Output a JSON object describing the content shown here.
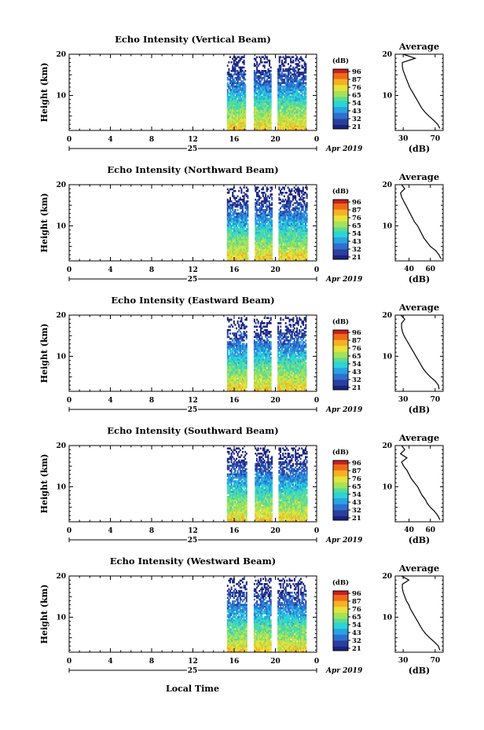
{
  "figure": {
    "xlabel": "Local Time",
    "day_label": "25",
    "date_label": "Apr 2019"
  },
  "colorbar": {
    "unit": "(dB)",
    "ticks": [
      "96",
      "87",
      "76",
      "65",
      "54",
      "43",
      "32",
      "21"
    ],
    "colors": [
      "#1a237e",
      "#2a3f9e",
      "#2f6fd0",
      "#29a3e3",
      "#2cd4d4",
      "#5bdc93",
      "#a3e25a",
      "#e6e23a",
      "#f7b023",
      "#f06a1a",
      "#c62020"
    ]
  },
  "chart_data": [
    {
      "type": "heatmap",
      "title": "Echo Intensity (Vertical Beam)",
      "ylabel": "Height (km)",
      "x_ticks": [
        "0",
        "4",
        "8",
        "12",
        "16",
        "20",
        "0"
      ],
      "xlim": [
        0,
        24
      ],
      "ylim": [
        1.5,
        20
      ],
      "y_ticks": [
        "20",
        "10"
      ],
      "data_segments_hours": [
        [
          15.3,
          17.1
        ],
        [
          17.9,
          19.5
        ],
        [
          20.2,
          23.0
        ]
      ],
      "value_range_db": [
        21,
        96
      ],
      "profile": {
        "title": "Average",
        "xlabel": "(dB)",
        "x_ticks": [
          "30",
          "70"
        ],
        "x_tick_values": [
          30,
          70
        ],
        "xlim": [
          20,
          80
        ],
        "heights": [
          2,
          3,
          4,
          5,
          6,
          7,
          8,
          9,
          10,
          11,
          12,
          13,
          14,
          15,
          16,
          17,
          18,
          19,
          20
        ],
        "values": [
          76,
          73,
          68,
          62,
          57,
          53,
          50,
          47,
          44,
          41,
          38,
          36,
          34,
          32,
          30,
          29,
          29,
          45,
          30
        ]
      }
    },
    {
      "type": "heatmap",
      "title": "Echo Intensity (Northward Beam)",
      "ylabel": "Height (km)",
      "x_ticks": [
        "0",
        "4",
        "8",
        "12",
        "16",
        "20",
        "0"
      ],
      "xlim": [
        0,
        24
      ],
      "ylim": [
        1.5,
        20
      ],
      "y_ticks": [
        "20",
        "10"
      ],
      "data_segments_hours": [
        [
          15.3,
          17.3
        ],
        [
          18.0,
          19.6
        ],
        [
          20.3,
          23.0
        ]
      ],
      "value_range_db": [
        21,
        96
      ],
      "profile": {
        "title": "Average",
        "xlabel": "(dB)",
        "x_ticks": [
          "40",
          "60"
        ],
        "x_tick_values": [
          40,
          60
        ],
        "xlim": [
          27,
          72
        ],
        "heights": [
          2,
          3,
          4,
          5,
          6,
          7,
          8,
          9,
          10,
          11,
          12,
          13,
          14,
          15,
          16,
          17,
          18,
          19,
          20
        ],
        "values": [
          70,
          68,
          65,
          60,
          57,
          54,
          52,
          50,
          48,
          45,
          43,
          41,
          39,
          37,
          35,
          33,
          32,
          36,
          33
        ]
      }
    },
    {
      "type": "heatmap",
      "title": "Echo Intensity (Eastward Beam)",
      "ylabel": "Height (km)",
      "x_ticks": [
        "0",
        "4",
        "8",
        "12",
        "16",
        "20",
        "0"
      ],
      "xlim": [
        0,
        24
      ],
      "ylim": [
        1.5,
        20
      ],
      "y_ticks": [
        "20",
        "10"
      ],
      "data_segments_hours": [
        [
          15.3,
          17.2
        ],
        [
          17.9,
          19.5
        ],
        [
          20.2,
          23.0
        ]
      ],
      "value_range_db": [
        21,
        96
      ],
      "profile": {
        "title": "Average",
        "xlabel": "(dB)",
        "x_ticks": [
          "30",
          "70"
        ],
        "x_tick_values": [
          30,
          70
        ],
        "xlim": [
          20,
          80
        ],
        "heights": [
          2,
          3,
          4,
          5,
          6,
          7,
          8,
          9,
          10,
          11,
          12,
          13,
          14,
          15,
          16,
          17,
          18,
          19,
          20
        ],
        "values": [
          75,
          74,
          70,
          64,
          59,
          55,
          52,
          49,
          46,
          43,
          40,
          37,
          34,
          31,
          29,
          28,
          28,
          32,
          27
        ]
      }
    },
    {
      "type": "heatmap",
      "title": "Echo Intensity (Southward Beam)",
      "ylabel": "Height (km)",
      "x_ticks": [
        "0",
        "4",
        "8",
        "12",
        "16",
        "20",
        "0"
      ],
      "xlim": [
        0,
        24
      ],
      "ylim": [
        1.5,
        20
      ],
      "y_ticks": [
        "20",
        "10"
      ],
      "data_segments_hours": [
        [
          15.3,
          17.2
        ],
        [
          18.0,
          19.6
        ],
        [
          20.3,
          23.0
        ]
      ],
      "value_range_db": [
        21,
        96
      ],
      "profile": {
        "title": "Average",
        "xlabel": "(dB)",
        "x_ticks": [
          "40",
          "60"
        ],
        "x_tick_values": [
          40,
          60
        ],
        "xlim": [
          27,
          72
        ],
        "heights": [
          2,
          3,
          4,
          5,
          6,
          7,
          8,
          9,
          10,
          11,
          12,
          13,
          14,
          15,
          16,
          17,
          18,
          19,
          20
        ],
        "values": [
          69,
          67,
          64,
          60,
          57,
          55,
          52,
          50,
          48,
          45,
          42,
          40,
          38,
          35,
          33,
          38,
          32,
          36,
          33
        ]
      }
    },
    {
      "type": "heatmap",
      "title": "Echo Intensity (Westward Beam)",
      "ylabel": "Height (km)",
      "x_ticks": [
        "0",
        "4",
        "8",
        "12",
        "16",
        "20",
        "0"
      ],
      "xlim": [
        0,
        24
      ],
      "ylim": [
        1.5,
        20
      ],
      "y_ticks": [
        "20",
        "10"
      ],
      "data_segments_hours": [
        [
          15.3,
          17.2
        ],
        [
          17.9,
          19.5
        ],
        [
          20.2,
          23.0
        ]
      ],
      "value_range_db": [
        21,
        96
      ],
      "profile": {
        "title": "Average",
        "xlabel": "(dB)",
        "x_ticks": [
          "30",
          "70"
        ],
        "x_tick_values": [
          30,
          70
        ],
        "xlim": [
          20,
          80
        ],
        "heights": [
          2,
          3,
          4,
          5,
          6,
          7,
          8,
          9,
          10,
          11,
          12,
          13,
          14,
          15,
          16,
          17,
          18,
          19,
          20
        ],
        "values": [
          76,
          74,
          69,
          63,
          58,
          54,
          51,
          48,
          45,
          42,
          39,
          37,
          34,
          32,
          30,
          29,
          29,
          37,
          28
        ]
      }
    }
  ]
}
